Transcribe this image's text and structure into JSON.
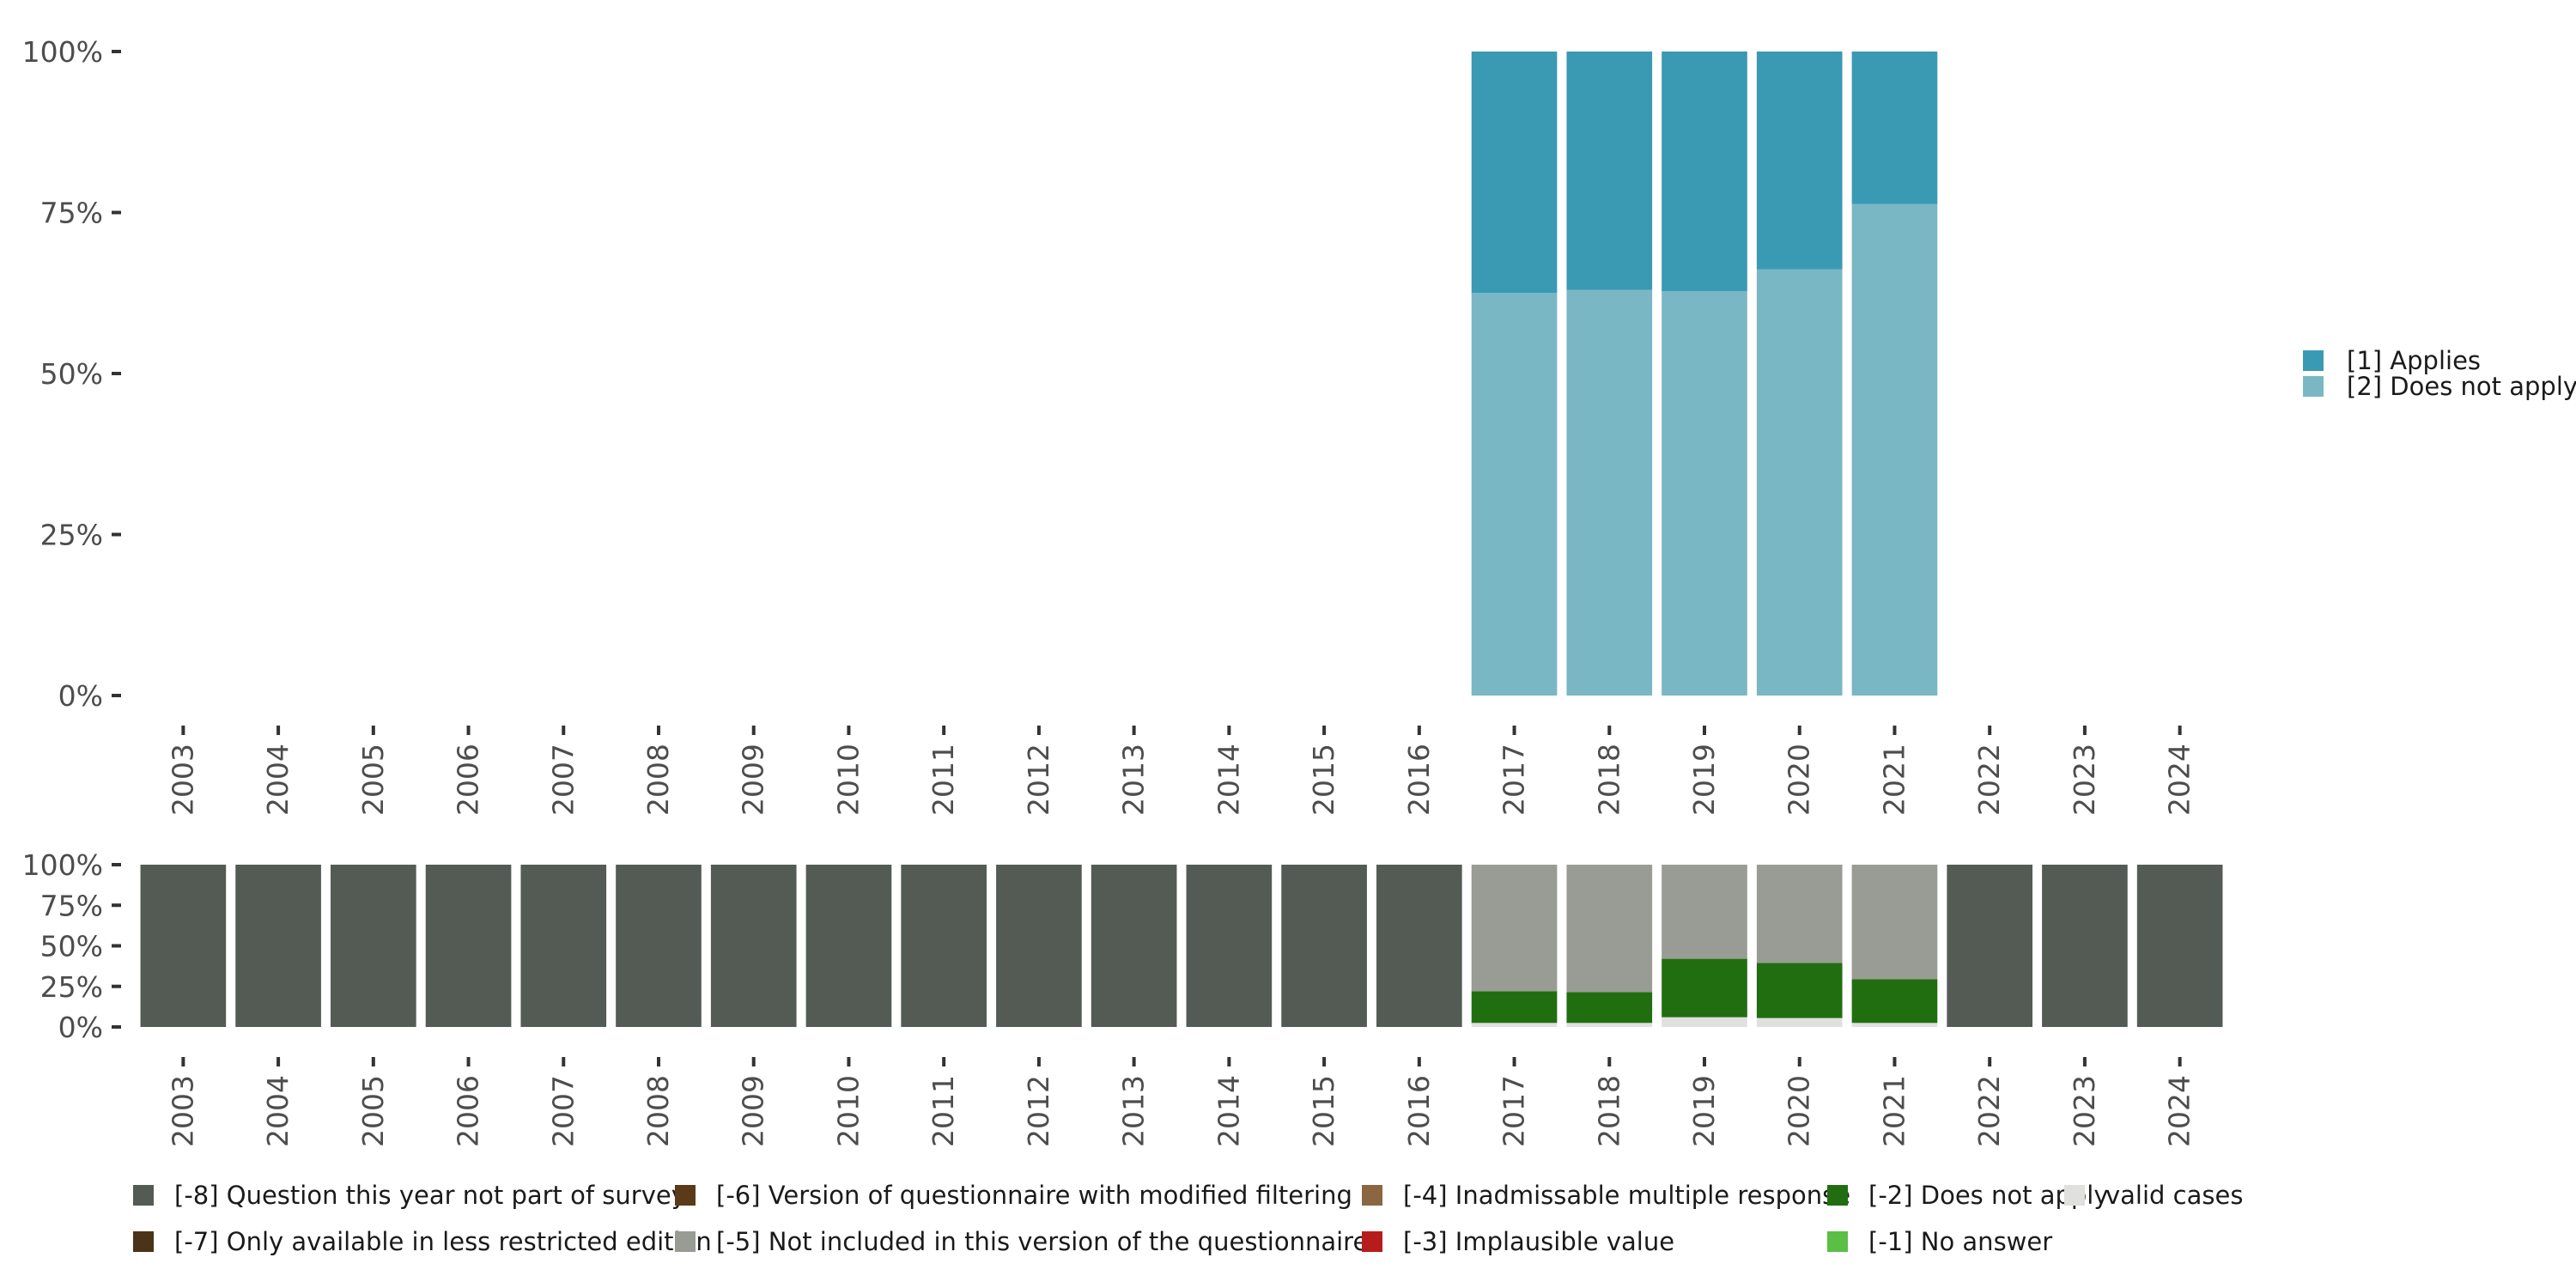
{
  "chart_data": [
    {
      "type": "bar",
      "stacked": true,
      "percent": true,
      "categories": [
        "2003",
        "2004",
        "2005",
        "2006",
        "2007",
        "2008",
        "2009",
        "2010",
        "2011",
        "2012",
        "2013",
        "2014",
        "2015",
        "2016",
        "2017",
        "2018",
        "2019",
        "2020",
        "2021",
        "2022",
        "2023",
        "2024"
      ],
      "yticks": [
        "0%",
        "25%",
        "50%",
        "75%",
        "100%"
      ],
      "ylim": [
        0,
        100
      ],
      "series": [
        {
          "name": "[1] Applies",
          "color": "#3a9ab3",
          "values": [
            null,
            null,
            null,
            null,
            null,
            null,
            null,
            null,
            null,
            null,
            null,
            null,
            null,
            null,
            37.5,
            37,
            37.2,
            33.8,
            23.7,
            null,
            null,
            null
          ]
        },
        {
          "name": "[2] Does not apply",
          "color": "#79b7c5",
          "values": [
            null,
            null,
            null,
            null,
            null,
            null,
            null,
            null,
            null,
            null,
            null,
            null,
            null,
            null,
            62.5,
            63,
            62.8,
            66.2,
            76.3,
            null,
            null,
            null
          ]
        }
      ],
      "legend_position": "right"
    },
    {
      "type": "bar",
      "stacked": true,
      "percent": true,
      "categories": [
        "2003",
        "2004",
        "2005",
        "2006",
        "2007",
        "2008",
        "2009",
        "2010",
        "2011",
        "2012",
        "2013",
        "2014",
        "2015",
        "2016",
        "2017",
        "2018",
        "2019",
        "2020",
        "2021",
        "2022",
        "2023",
        "2024"
      ],
      "yticks": [
        "0%",
        "25%",
        "50%",
        "75%",
        "100%"
      ],
      "ylim": [
        0,
        100
      ],
      "series": [
        {
          "name": "valid cases",
          "color": "#e0e0de",
          "values": [
            0,
            0,
            0,
            0,
            0,
            0,
            0,
            0,
            0,
            0,
            0,
            0,
            0,
            0,
            2.5,
            2.5,
            6,
            5.5,
            2.5,
            0,
            0,
            0
          ]
        },
        {
          "name": "[-1] No answer",
          "color": "#5abf45",
          "values": [
            0,
            0,
            0,
            0,
            0,
            0,
            0,
            0,
            0,
            0,
            0,
            0,
            0,
            0,
            0,
            0,
            0,
            0,
            0,
            0,
            0,
            0
          ]
        },
        {
          "name": "[-2] Does not apply",
          "color": "#216e10",
          "values": [
            0,
            0,
            0,
            0,
            0,
            0,
            0,
            0,
            0,
            0,
            0,
            0,
            0,
            0,
            19.5,
            19,
            36,
            34,
            27,
            0,
            0,
            0
          ]
        },
        {
          "name": "[-3] Implausible value",
          "color": "#b71c1c",
          "values": [
            0,
            0,
            0,
            0,
            0,
            0,
            0,
            0,
            0,
            0,
            0,
            0,
            0,
            0,
            0,
            0,
            0,
            0,
            0,
            0,
            0,
            0
          ]
        },
        {
          "name": "[-4] Inadmissable multiple response",
          "color": "#8b6640",
          "values": [
            0,
            0,
            0,
            0,
            0,
            0,
            0,
            0,
            0,
            0,
            0,
            0,
            0,
            0,
            0,
            0,
            0,
            0,
            0,
            0,
            0,
            0
          ]
        },
        {
          "name": "[-5] Not included in this version of the questionnaire",
          "color": "#999c94",
          "values": [
            0,
            0,
            0,
            0,
            0,
            0,
            0,
            0,
            0,
            0,
            0,
            0,
            0,
            0,
            78,
            78.5,
            58,
            60.5,
            70.5,
            0,
            0,
            0
          ]
        },
        {
          "name": "[-6] Version of questionnaire with modified filtering",
          "color": "#5a3a18",
          "values": [
            0,
            0,
            0,
            0,
            0,
            0,
            0,
            0,
            0,
            0,
            0,
            0,
            0,
            0,
            0,
            0,
            0,
            0,
            0,
            0,
            0,
            0
          ]
        },
        {
          "name": "[-7] Only available in less restricted edition",
          "color": "#4a3318",
          "values": [
            0,
            0,
            0,
            0,
            0,
            0,
            0,
            0,
            0,
            0,
            0,
            0,
            0,
            0,
            0,
            0,
            0,
            0,
            0,
            0,
            0,
            0
          ]
        },
        {
          "name": "[-8] Question this year not part of survey",
          "color": "#545b54",
          "values": [
            100,
            100,
            100,
            100,
            100,
            100,
            100,
            100,
            100,
            100,
            100,
            100,
            100,
            100,
            0,
            0,
            0,
            0,
            0,
            100,
            100,
            100
          ]
        }
      ],
      "legend_position": "bottom",
      "legend_order": [
        [
          "[-8] Question this year not part of survey",
          "[-6] Version of questionnaire with modified filtering",
          "[-4] Inadmissable multiple response",
          "[-2] Does not apply",
          "valid cases"
        ],
        [
          "[-7] Only available in less restricted edition",
          "[-5] Not included in this version of the questionnaire",
          "[-3] Implausible value",
          "[-1] No answer"
        ]
      ]
    }
  ]
}
